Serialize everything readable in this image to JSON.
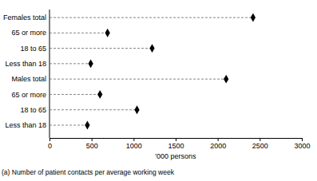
{
  "chart_data": {
    "type": "dot",
    "orientation": "horizontal",
    "categories": [
      "Females total",
      "65 or more",
      "18 to 65",
      "Less than 18",
      "Males total",
      "65 or more",
      "18 to 65",
      "Less than 18"
    ],
    "values": [
      2420,
      690,
      1220,
      490,
      2100,
      600,
      1040,
      450
    ],
    "color": "#000000",
    "marker": "diamond",
    "line_style": "dashed",
    "x_label": "'000 persons",
    "xlim": [
      0,
      3000
    ],
    "xticks": [
      0,
      500,
      1000,
      1500,
      2000,
      2500,
      3000
    ],
    "annotations": [
      "(a) Number of patient contacts per average working week"
    ]
  }
}
